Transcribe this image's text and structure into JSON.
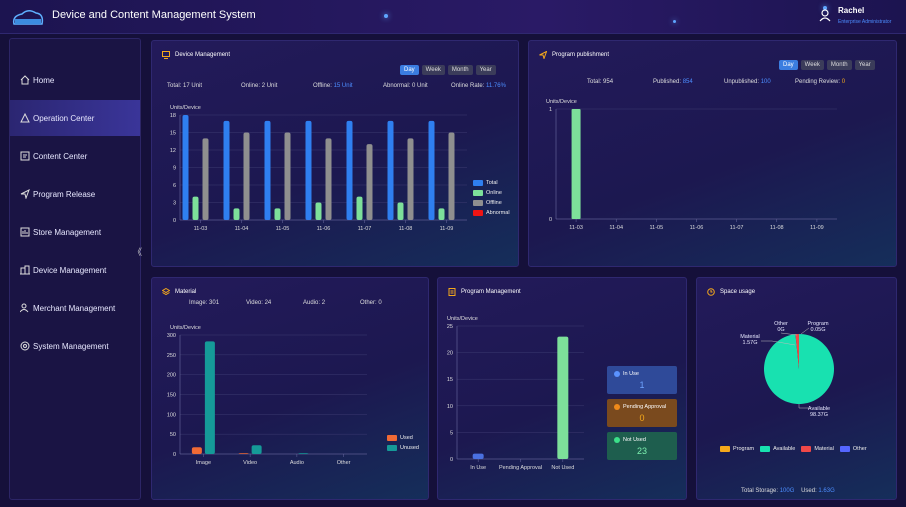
{
  "header": {
    "title": "Device and Content Management System",
    "user_name": "Rachel",
    "user_role": "Enterprise Administrator"
  },
  "sidebar": {
    "items": [
      {
        "label": "Home",
        "icon": "home-icon"
      },
      {
        "label": "Operation Center",
        "icon": "triangle-icon",
        "active": true
      },
      {
        "label": "Content Center",
        "icon": "content-icon"
      },
      {
        "label": "Program Release",
        "icon": "send-icon"
      },
      {
        "label": "Store Management",
        "icon": "store-icon"
      },
      {
        "label": "Device Management",
        "icon": "device-icon"
      },
      {
        "label": "Merchant Management",
        "icon": "merchant-icon"
      },
      {
        "label": "System Management",
        "icon": "settings-icon"
      }
    ],
    "collapse_glyph": "《"
  },
  "periods": [
    "Day",
    "Week",
    "Month",
    "Year"
  ],
  "device": {
    "title": "Device Management",
    "total_label": "Total:",
    "total_value": "17 Unit",
    "online_label": "Online:",
    "online_value": "2 Unit",
    "offline_label": "Offline:",
    "offline_value": "15 Unit",
    "abnormal_label": "Abnormal:",
    "abnormal_value": "0 Unit",
    "rate_label": "Online Rate:",
    "rate_value": "11.76%",
    "ylabel": "Units/Device",
    "legend": [
      "Total",
      "Online",
      "Offline",
      "Abnormal"
    ]
  },
  "program_pub": {
    "title": "Program publishment",
    "total_label": "Total:",
    "total_value": "954",
    "published_label": "Published:",
    "published_value": "854",
    "unpublished_label": "Unpublished:",
    "unpublished_value": "100",
    "pending_label": "Pending Review:",
    "pending_value": "0",
    "ylabel": "Units/Device"
  },
  "material": {
    "title": "Material",
    "image_label": "Image:",
    "image_value": "301",
    "video_label": "Video:",
    "video_value": "24",
    "audio_label": "Audio:",
    "audio_value": "2",
    "other_label": "Other:",
    "other_value": "0",
    "ylabel": "Units/Device",
    "legend": [
      "Used",
      "Unused"
    ]
  },
  "program_mgmt": {
    "title": "Program Management",
    "ylabel": "Units/Device",
    "boxes": [
      {
        "label": "In Use",
        "value": "1"
      },
      {
        "label": "Pending Approval",
        "value": "0"
      },
      {
        "label": "Not Used",
        "value": "23"
      }
    ]
  },
  "space": {
    "title": "Space usage",
    "slice_labels": {
      "other": "Other",
      "other_val": "0G",
      "program": "Program",
      "program_val": "0.05G",
      "material": "Material",
      "material_val": "1.57G",
      "available": "Available",
      "available_val": "98.37G"
    },
    "legend": [
      "Program",
      "Available",
      "Material",
      "Other"
    ],
    "total_label": "Total Storage:",
    "total_value": "100G",
    "used_label": "Used:",
    "used_value": "1.63G"
  },
  "colors": {
    "total": "#2f7ff0",
    "online": "#7de09a",
    "offline": "#8f8f8f",
    "abnormal": "#f01414",
    "used": "#f06a35",
    "unused": "#159a98",
    "program": "#f4a81b",
    "available": "#18e1b0",
    "material": "#f04848",
    "other": "#5566ff"
  },
  "chart_data": [
    {
      "type": "bar",
      "title": "Device Management",
      "ylabel": "Units/Device",
      "categories": [
        "11-03",
        "11-04",
        "11-05",
        "11-06",
        "11-07",
        "11-08",
        "11-09"
      ],
      "series": [
        {
          "name": "Total",
          "values": [
            18,
            17,
            17,
            17,
            17,
            17,
            17
          ]
        },
        {
          "name": "Online",
          "values": [
            4,
            2,
            2,
            3,
            4,
            3,
            2
          ]
        },
        {
          "name": "Offline",
          "values": [
            14,
            15,
            15,
            14,
            13,
            14,
            15
          ]
        },
        {
          "name": "Abnormal",
          "values": [
            0,
            0,
            0,
            0,
            0,
            0,
            0
          ]
        }
      ],
      "yticks": [
        0,
        3,
        6,
        9,
        12,
        15,
        18
      ],
      "ylim": [
        0,
        18
      ]
    },
    {
      "type": "bar",
      "title": "Program publishment",
      "ylabel": "Units/Device",
      "categories": [
        "11-03",
        "11-04",
        "11-05",
        "11-06",
        "11-07",
        "11-08",
        "11-09"
      ],
      "series": [
        {
          "values": [
            1,
            0,
            0,
            0,
            0,
            0,
            0
          ]
        }
      ],
      "yticks": [
        0,
        1
      ],
      "ylim": [
        0,
        1
      ]
    },
    {
      "type": "bar",
      "title": "Material",
      "ylabel": "Units/Device",
      "categories": [
        "Image",
        "Video",
        "Audio",
        "Other"
      ],
      "series": [
        {
          "name": "Used",
          "values": [
            17,
            2,
            0,
            0
          ]
        },
        {
          "name": "Unused",
          "values": [
            284,
            22,
            2,
            0
          ]
        }
      ],
      "yticks": [
        0,
        50,
        100,
        150,
        200,
        250,
        300
      ],
      "ylim": [
        0,
        300
      ]
    },
    {
      "type": "bar",
      "title": "Program Management",
      "ylabel": "Units/Device",
      "categories": [
        "In Use",
        "Pending Approval",
        "Not Used"
      ],
      "series": [
        {
          "values": [
            1,
            0,
            23
          ]
        }
      ],
      "yticks": [
        0,
        5,
        10,
        15,
        20,
        25
      ],
      "ylim": [
        0,
        25
      ]
    },
    {
      "type": "pie",
      "title": "Space usage",
      "slices": [
        {
          "name": "Program",
          "value": 0.05
        },
        {
          "name": "Available",
          "value": 98.37
        },
        {
          "name": "Material",
          "value": 1.57
        },
        {
          "name": "Other",
          "value": 0
        }
      ]
    }
  ]
}
